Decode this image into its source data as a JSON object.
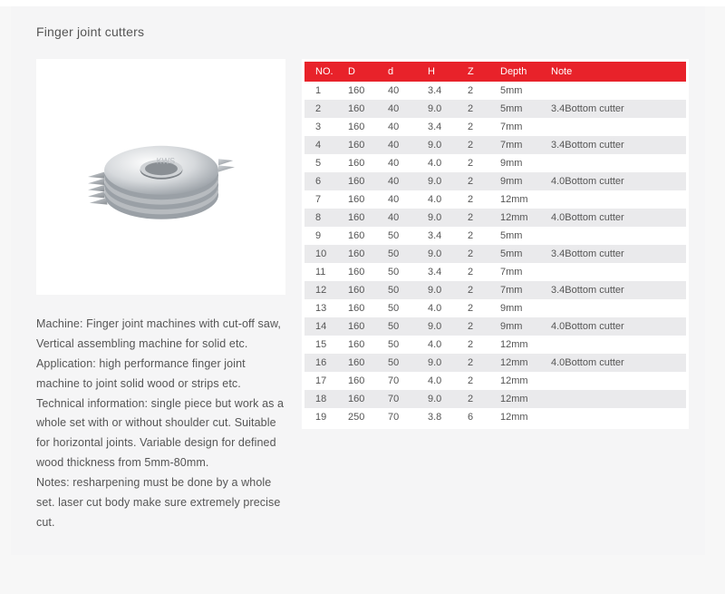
{
  "title": "Finger joint cutters",
  "description": "Machine: Finger joint machines with cut-off saw, Vertical assembling machine for solid etc.\nApplication: high performance finger joint machine to joint solid wood or strips etc.\nTechnical information: single piece but work as a whole set with or without shoulder cut. Suitable for horizontal joints. Variable design for defined wood thickness from 5mm-80mm.\nNotes: resharpening must be done by a whole set. laser cut body make sure extremely precise cut.",
  "table": {
    "header_bg": "#e8222a",
    "header_fg": "#ffffff",
    "row_odd_bg": "#ffffff",
    "row_even_bg": "#eaeaec",
    "cell_fg": "#555555",
    "fontsize": 11,
    "columns": [
      "NO.",
      "D",
      "d",
      "H",
      "Z",
      "Depth",
      "Note"
    ],
    "rows": [
      [
        "1",
        "160",
        "40",
        "3.4",
        "2",
        "5mm",
        ""
      ],
      [
        "2",
        "160",
        "40",
        "9.0",
        "2",
        "5mm",
        "3.4Bottom cutter"
      ],
      [
        "3",
        "160",
        "40",
        "3.4",
        "2",
        "7mm",
        ""
      ],
      [
        "4",
        "160",
        "40",
        "9.0",
        "2",
        "7mm",
        "3.4Bottom cutter"
      ],
      [
        "5",
        "160",
        "40",
        "4.0",
        "2",
        "9mm",
        ""
      ],
      [
        "6",
        "160",
        "40",
        "9.0",
        "2",
        "9mm",
        "4.0Bottom cutter"
      ],
      [
        "7",
        "160",
        "40",
        "4.0",
        "2",
        "12mm",
        ""
      ],
      [
        "8",
        "160",
        "40",
        "9.0",
        "2",
        "12mm",
        "4.0Bottom cutter"
      ],
      [
        "9",
        "160",
        "50",
        "3.4",
        "2",
        "5mm",
        ""
      ],
      [
        "10",
        "160",
        "50",
        "9.0",
        "2",
        "5mm",
        "3.4Bottom cutter"
      ],
      [
        "11",
        "160",
        "50",
        "3.4",
        "2",
        "7mm",
        ""
      ],
      [
        "12",
        "160",
        "50",
        "9.0",
        "2",
        "7mm",
        "3.4Bottom cutter"
      ],
      [
        "13",
        "160",
        "50",
        "4.0",
        "2",
        "9mm",
        ""
      ],
      [
        "14",
        "160",
        "50",
        "9.0",
        "2",
        "9mm",
        "4.0Bottom cutter"
      ],
      [
        "15",
        "160",
        "50",
        "4.0",
        "2",
        "12mm",
        ""
      ],
      [
        "16",
        "160",
        "50",
        "9.0",
        "2",
        "12mm",
        "4.0Bottom cutter"
      ],
      [
        "17",
        "160",
        "70",
        "4.0",
        "2",
        "12mm",
        ""
      ],
      [
        "18",
        "160",
        "70",
        "9.0",
        "2",
        "12mm",
        ""
      ],
      [
        "19",
        "250",
        "70",
        "3.8",
        "6",
        "12mm",
        ""
      ]
    ]
  },
  "image": {
    "alt": "Stacked finger joint cutter discs",
    "brand_text": "KWS"
  }
}
